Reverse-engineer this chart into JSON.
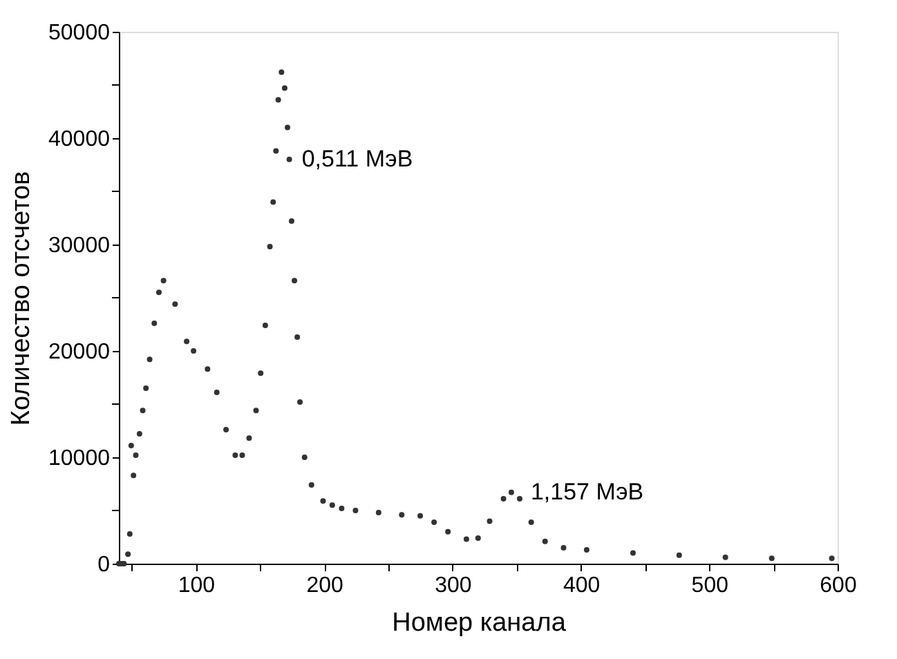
{
  "chart_data": {
    "type": "scatter",
    "xlabel": "Номер канала",
    "ylabel": "Количество отсчетов",
    "x": [
      40,
      42,
      44,
      47.1,
      48.5,
      49.6,
      51.4,
      53.2,
      56.1,
      58.6,
      61.1,
      64,
      67.6,
      71.2,
      74.8,
      83.8,
      92.8,
      98.2,
      109.1,
      116.3,
      123.5,
      130.7,
      136.1,
      141.5,
      146.9,
      150.5,
      154.1,
      157.7,
      160.2,
      162.4,
      164.2,
      166.7,
      169.2,
      171.4,
      172.8,
      174.6,
      176.8,
      179,
      181.1,
      184.7,
      190.1,
      199.1,
      206.3,
      213.6,
      224.4,
      242.4,
      260.4,
      274.8,
      285.6,
      296.4,
      310.8,
      319.9,
      328.9,
      339.7,
      345.8,
      352.3,
      361.3,
      372.1,
      386.5,
      404.5,
      440.6,
      476.6,
      512.6,
      548.7,
      595.5
    ],
    "series": [
      {
        "color": "#333333",
        "values": [
          0,
          0,
          0,
          900,
          2800,
          11100,
          8300,
          10200,
          12200,
          14400,
          16500,
          19200,
          22600,
          25500,
          26600,
          24400,
          20900,
          20000,
          18300,
          16100,
          12600,
          10200,
          10200,
          11800,
          14400,
          17900,
          22400,
          29800,
          34000,
          38800,
          43600,
          46200,
          44700,
          41000,
          38000,
          32200,
          26600,
          21300,
          15200,
          10000,
          7400,
          5900,
          5500,
          5200,
          5000,
          4800,
          4600,
          4500,
          3900,
          3000,
          2300,
          2400,
          4000,
          6100,
          6700,
          6100,
          3900,
          2100,
          1500,
          1300,
          1000,
          800,
          600,
          500,
          500
        ]
      }
    ],
    "xlim": [
      40,
      600
    ],
    "xticks": [
      {
        "value": 50,
        "label": null
      },
      100,
      {
        "value": 150,
        "label": null
      },
      200,
      {
        "value": 250,
        "label": null
      },
      300,
      {
        "value": 350,
        "label": null
      },
      400,
      {
        "value": 450,
        "label": null
      },
      500,
      {
        "value": 550,
        "label": null
      },
      600
    ],
    "ylim": [
      0,
      50000
    ],
    "yticks": [
      0,
      {
        "value": 5000,
        "label": null
      },
      10000,
      {
        "value": 15000,
        "label": null
      },
      20000,
      {
        "value": 25000,
        "label": null
      },
      30000,
      {
        "value": 35000,
        "label": null
      },
      40000,
      {
        "value": 45000,
        "label": null
      },
      50000
    ],
    "marker": "circle",
    "grid": false,
    "legend": false,
    "annotations": [
      {
        "text": "0,511 МэВ",
        "x": 172.8,
        "y": 38000
      },
      {
        "text": "1,157 МэВ",
        "x": 345.8,
        "y": 6700
      }
    ]
  }
}
